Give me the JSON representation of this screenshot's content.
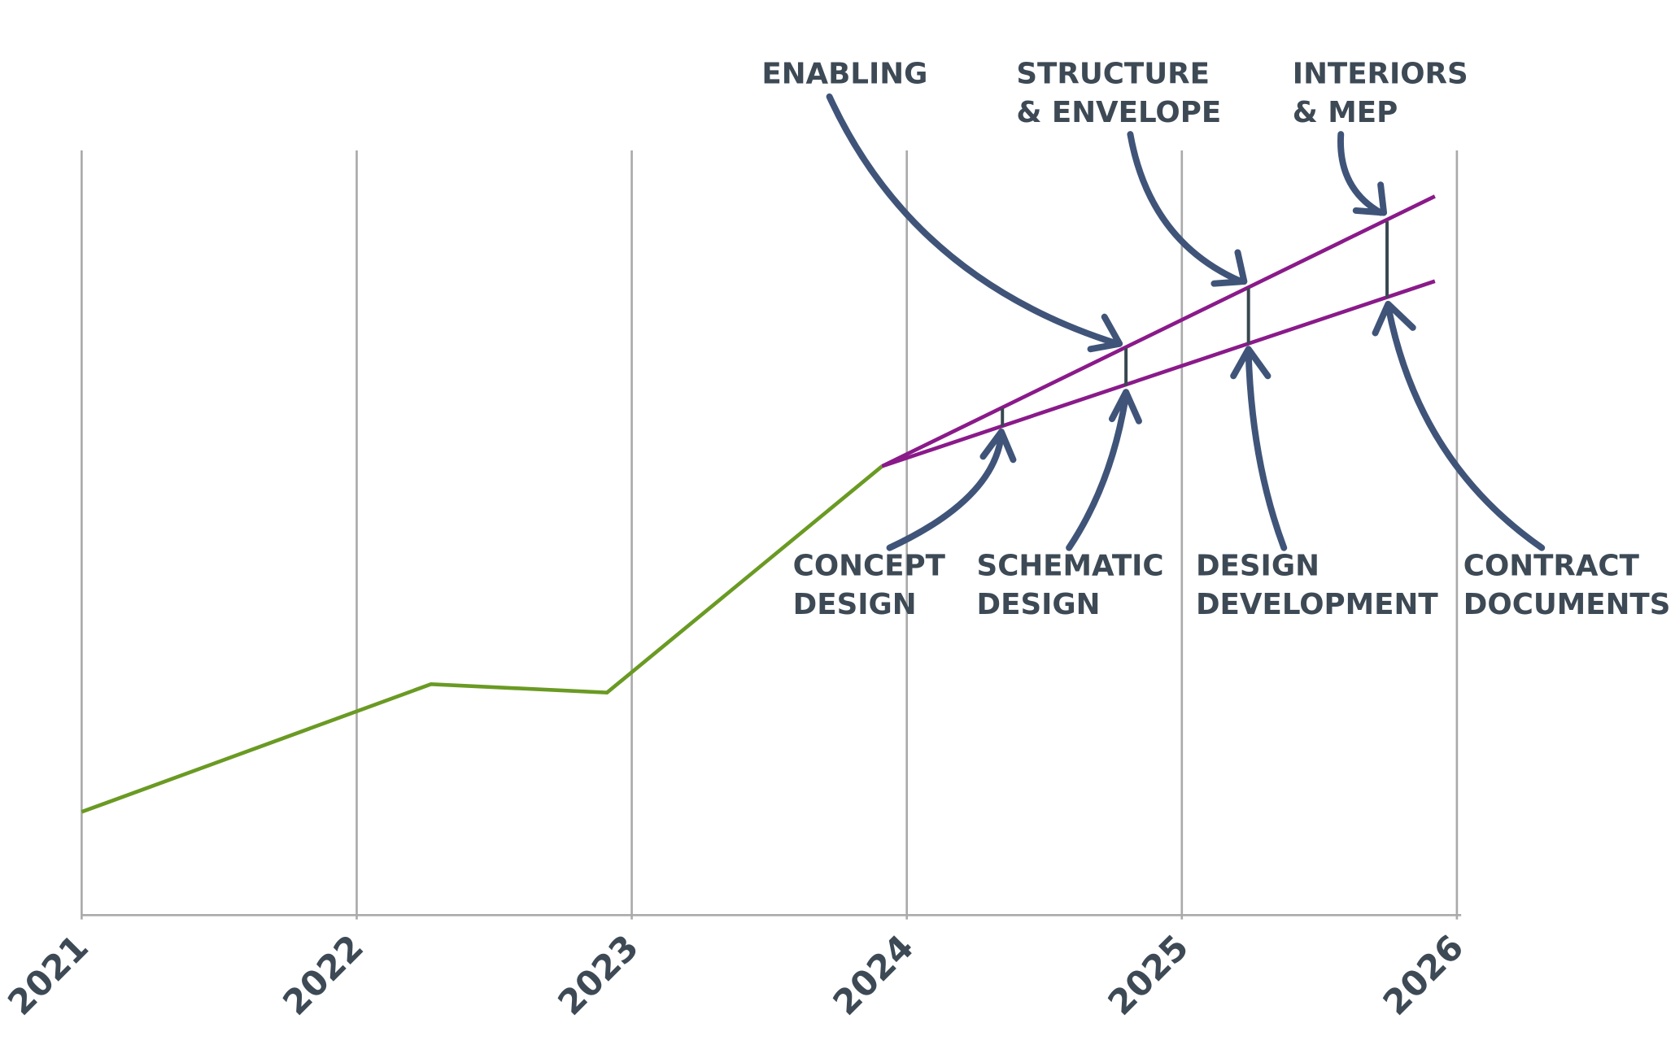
{
  "chart_data": {
    "type": "line",
    "xlim": [
      2021,
      2026
    ],
    "xticks": [
      2021,
      2022,
      2023,
      2024,
      2025,
      2026
    ],
    "ylim": [
      0,
      100
    ],
    "grid": true,
    "series": [
      {
        "color": "#6a9a23",
        "x": [
          2021,
          2022.27,
          2022.91,
          2023.91
        ],
        "values": [
          13.5,
          30.2,
          29.1,
          58.7
        ]
      },
      {
        "color": "#8a1a8a",
        "x": [
          2023.91,
          2025.92
        ],
        "values": [
          58.7,
          94.0
        ]
      },
      {
        "color": "#8a1a8a",
        "x": [
          2023.91,
          2025.92
        ],
        "values": [
          58.7,
          82.9
        ]
      }
    ],
    "annotations": [
      {
        "lines": [
          "ENABLING"
        ]
      },
      {
        "lines": [
          "STRUCTURE",
          "& ENVELOPE"
        ]
      },
      {
        "lines": [
          "INTERIORS",
          "& MEP"
        ]
      },
      {
        "lines": [
          "CONCEPT",
          "DESIGN"
        ]
      },
      {
        "lines": [
          "SCHEMATIC",
          "DESIGN"
        ]
      },
      {
        "lines": [
          "DESIGN",
          "DEVELOPMENT"
        ]
      },
      {
        "lines": [
          "CONTRACT",
          "DOCUMENTS"
        ]
      }
    ]
  }
}
